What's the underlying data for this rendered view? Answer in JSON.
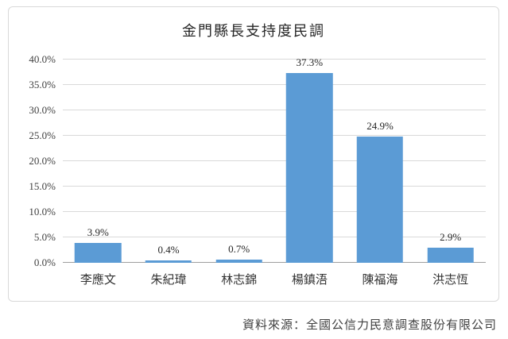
{
  "chart_data": {
    "type": "bar",
    "title": "金門縣長支持度民調",
    "categories": [
      "李應文",
      "朱紀瑋",
      "林志錦",
      "楊鎮浯",
      "陳福海",
      "洪志恆"
    ],
    "values": [
      3.9,
      0.4,
      0.7,
      37.3,
      24.9,
      2.9
    ],
    "data_labels": [
      "3.9%",
      "0.4%",
      "0.7%",
      "37.3%",
      "24.9%",
      "2.9%"
    ],
    "ylim": [
      0,
      40
    ],
    "ytick_step": 5,
    "ytick_labels": [
      "0.0%",
      "5.0%",
      "10.0%",
      "15.0%",
      "20.0%",
      "25.0%",
      "30.0%",
      "35.0%",
      "40.0%"
    ],
    "bar_color": "#5B9BD5",
    "grid": true,
    "legend": "none",
    "source_note": "資料來源：全國公信力民意調查股份有限公司"
  }
}
